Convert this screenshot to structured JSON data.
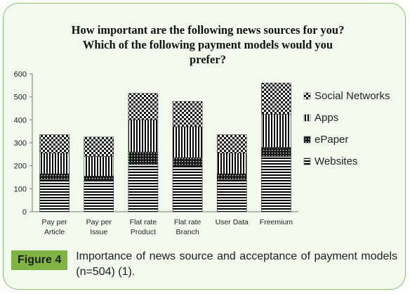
{
  "figure": {
    "label": "Figure 4",
    "caption": "Importance of news source and acceptance of payment models (n=504) (1)."
  },
  "chart_data": {
    "type": "bar",
    "stacked": true,
    "title_lines": [
      "How important are the following news sources for you?",
      "Which of the following payment models would you",
      "prefer?"
    ],
    "categories": [
      [
        "Pay per",
        "Article"
      ],
      [
        "Pay per",
        "Issue"
      ],
      [
        "Flat rate",
        "Product"
      ],
      [
        "Flat rate",
        "Branch"
      ],
      [
        "User Data"
      ],
      [
        "Freemium"
      ]
    ],
    "series": [
      {
        "name": "Websites",
        "pattern": "hlines",
        "values": [
          140,
          135,
          205,
          200,
          140,
          240
        ]
      },
      {
        "name": "ePaper",
        "pattern": "dots",
        "values": [
          25,
          20,
          55,
          35,
          25,
          40
        ]
      },
      {
        "name": "Apps",
        "pattern": "vlines",
        "values": [
          90,
          85,
          140,
          135,
          90,
          145
        ]
      },
      {
        "name": "Social Networks",
        "pattern": "checker",
        "values": [
          80,
          85,
          115,
          110,
          80,
          135
        ]
      }
    ],
    "legend_order": [
      "Social Networks",
      "Apps",
      "ePaper",
      "Websites"
    ],
    "ylim": [
      0,
      600
    ],
    "yticks": [
      0,
      100,
      200,
      300,
      400,
      500,
      600
    ],
    "grid": false,
    "legend_position": "right"
  }
}
